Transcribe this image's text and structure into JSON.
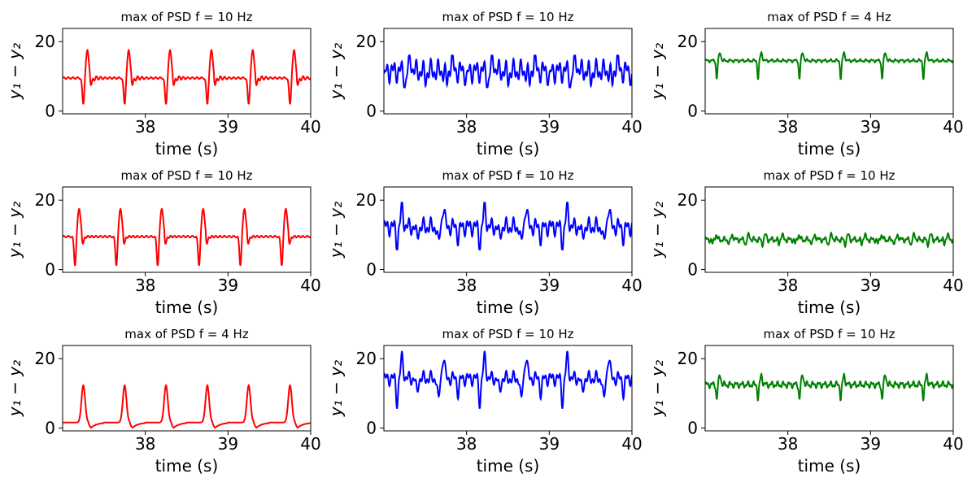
{
  "chart_data": [
    {
      "type": "line",
      "title": "max of PSD f = 10 Hz",
      "xlabel": "time (s)",
      "ylabel": "y₁ − y₂",
      "xlim": [
        37.0,
        40.0
      ],
      "ylim": [
        -0.8,
        23.8
      ],
      "xticks": [
        38,
        39,
        40
      ],
      "yticks": [
        0,
        20
      ],
      "color": "#ff0000",
      "pattern": "spike",
      "params": {
        "base": 9.5,
        "up": 17.4,
        "down": 1.8,
        "period": 0.5,
        "first": 37.25
      }
    },
    {
      "type": "line",
      "title": "max of PSD f = 10 Hz",
      "xlabel": "time (s)",
      "ylabel": "y₁ − y₂",
      "xlim": [
        37.0,
        40.0
      ],
      "ylim": [
        -0.8,
        23.8
      ],
      "xticks": [
        38,
        39,
        40
      ],
      "yticks": [
        0,
        20
      ],
      "color": "#0000ff",
      "pattern": "noisy",
      "params": {
        "base": 11.5,
        "amp": 3.2,
        "min": 6.8,
        "max": 16.0,
        "period": 0.5,
        "first": 37.3
      }
    },
    {
      "type": "line",
      "title": "max of PSD f = 4 Hz",
      "xlabel": "time (s)",
      "ylabel": "y₁ − y₂",
      "xlim": [
        37.0,
        40.0
      ],
      "ylim": [
        -0.8,
        23.8
      ],
      "xticks": [
        38,
        39,
        40
      ],
      "yticks": [
        0,
        20
      ],
      "color": "#008000",
      "pattern": "flat",
      "params": {
        "base": 14.5,
        "amp": 0.5,
        "up": 16.8,
        "down": 9.2,
        "period": 0.5,
        "first": 37.15
      }
    },
    {
      "type": "line",
      "title": "max of PSD f = 10 Hz",
      "xlabel": "time (s)",
      "ylabel": "y₁ − y₂",
      "xlim": [
        37.0,
        40.0
      ],
      "ylim": [
        -0.8,
        23.8
      ],
      "xticks": [
        38,
        39,
        40
      ],
      "yticks": [
        0,
        20
      ],
      "color": "#ff0000",
      "pattern": "spike",
      "params": {
        "base": 9.5,
        "up": 17.6,
        "down": 1.2,
        "period": 0.5,
        "first": 37.15
      }
    },
    {
      "type": "line",
      "title": "max of PSD f = 10 Hz",
      "xlabel": "time (s)",
      "ylabel": "y₁ − y₂",
      "xlim": [
        37.0,
        40.0
      ],
      "ylim": [
        -0.8,
        23.8
      ],
      "xticks": [
        38,
        39,
        40
      ],
      "yticks": [
        0,
        20
      ],
      "color": "#0000ff",
      "pattern": "noisy",
      "params": {
        "base": 12.3,
        "amp": 2.5,
        "min": 5.8,
        "max": 19.3,
        "period": 0.5,
        "first": 37.2
      }
    },
    {
      "type": "line",
      "title": "max of PSD f = 10 Hz",
      "xlabel": "time (s)",
      "ylabel": "y₁ − y₂",
      "xlim": [
        37.0,
        40.0
      ],
      "ylim": [
        -0.8,
        23.8
      ],
      "xticks": [
        38,
        39,
        40
      ],
      "yticks": [
        0,
        20
      ],
      "color": "#008000",
      "pattern": "flat",
      "params": {
        "base": 8.6,
        "amp": 0.9,
        "up": 10.0,
        "down": 7.2,
        "period": 0.2,
        "first": 37.1
      }
    },
    {
      "type": "line",
      "title": "max of PSD f = 4 Hz",
      "xlabel": "time (s)",
      "ylabel": "y₁ − y₂",
      "xlim": [
        37.0,
        40.0
      ],
      "ylim": [
        -0.8,
        23.8
      ],
      "xticks": [
        38,
        39,
        40
      ],
      "yticks": [
        0,
        20
      ],
      "color": "#ff0000",
      "pattern": "pulse",
      "params": {
        "base": 1.6,
        "up": 12.3,
        "down": -0.8,
        "period": 0.5,
        "first": 37.25
      }
    },
    {
      "type": "line",
      "title": "max of PSD f = 10 Hz",
      "xlabel": "time (s)",
      "ylabel": "y₁ − y₂",
      "xlim": [
        37.0,
        40.0
      ],
      "ylim": [
        -0.8,
        23.8
      ],
      "xticks": [
        38,
        39,
        40
      ],
      "yticks": [
        0,
        20
      ],
      "color": "#0000ff",
      "pattern": "noisy",
      "params": {
        "base": 14.3,
        "amp": 2.0,
        "min": 5.8,
        "max": 22.0,
        "period": 0.5,
        "first": 37.2
      }
    },
    {
      "type": "line",
      "title": "max of PSD f = 10 Hz",
      "xlabel": "time (s)",
      "ylabel": "y₁ − y₂",
      "xlim": [
        37.0,
        40.0
      ],
      "ylim": [
        -0.8,
        23.8
      ],
      "xticks": [
        38,
        39,
        40
      ],
      "yticks": [
        0,
        20
      ],
      "color": "#008000",
      "pattern": "flat",
      "params": {
        "base": 12.5,
        "amp": 1.0,
        "up": 15.3,
        "down": 8.3,
        "period": 0.5,
        "first": 37.15
      }
    }
  ]
}
